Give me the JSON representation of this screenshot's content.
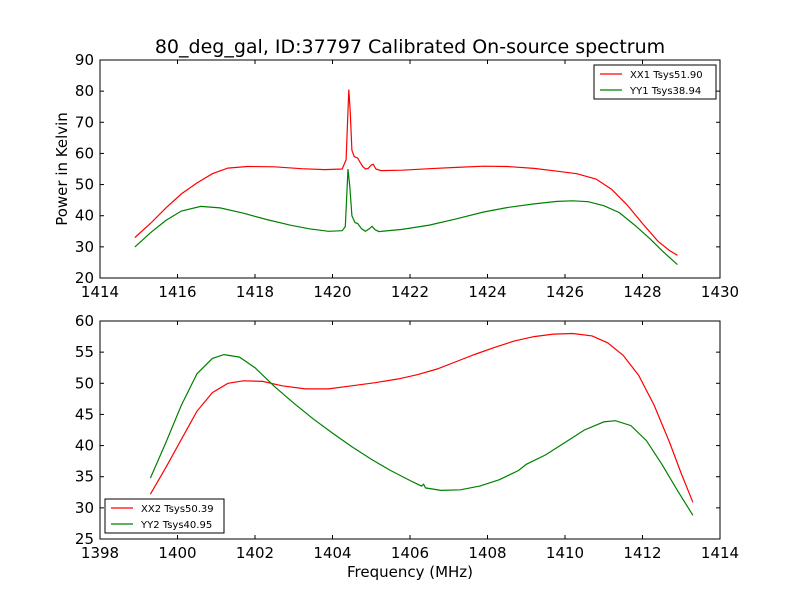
{
  "title": "80_deg_gal, ID:37797 Calibrated On-source spectrum",
  "chart_data": [
    {
      "type": "line",
      "xlabel": "",
      "ylabel": "Power in Kelvin",
      "xlim": [
        1414,
        1430
      ],
      "ylim": [
        20,
        90
      ],
      "xticks": [
        1414,
        1416,
        1418,
        1420,
        1422,
        1424,
        1426,
        1428,
        1430
      ],
      "yticks": [
        20,
        30,
        40,
        50,
        60,
        70,
        80,
        90
      ],
      "legend_loc": "top-right",
      "series": [
        {
          "name": "XX1 Tsys51.90",
          "color": "#ff0000",
          "points": [
            [
              1414.9,
              33
            ],
            [
              1415.3,
              37.5
            ],
            [
              1415.7,
              42.5
            ],
            [
              1416.1,
              47
            ],
            [
              1416.5,
              50.5
            ],
            [
              1416.9,
              53.5
            ],
            [
              1417.3,
              55.3
            ],
            [
              1417.8,
              55.8
            ],
            [
              1418.5,
              55.7
            ],
            [
              1419.2,
              55.1
            ],
            [
              1419.8,
              54.8
            ],
            [
              1420.25,
              55.0
            ],
            [
              1420.35,
              58
            ],
            [
              1420.42,
              80.5
            ],
            [
              1420.46,
              73
            ],
            [
              1420.5,
              61
            ],
            [
              1420.56,
              59
            ],
            [
              1420.65,
              58.5
            ],
            [
              1420.72,
              57
            ],
            [
              1420.78,
              55.8
            ],
            [
              1420.85,
              55
            ],
            [
              1420.92,
              55.2
            ],
            [
              1421.0,
              56.3
            ],
            [
              1421.05,
              56.5
            ],
            [
              1421.12,
              55
            ],
            [
              1421.25,
              54.5
            ],
            [
              1421.8,
              54.6
            ],
            [
              1422.5,
              55.1
            ],
            [
              1423.2,
              55.5
            ],
            [
              1423.9,
              55.9
            ],
            [
              1424.5,
              55.8
            ],
            [
              1425.2,
              55.2
            ],
            [
              1425.8,
              54.3
            ],
            [
              1426.3,
              53.5
            ],
            [
              1426.8,
              51.8
            ],
            [
              1427.2,
              48.5
            ],
            [
              1427.6,
              43.5
            ],
            [
              1428.0,
              37.5
            ],
            [
              1428.4,
              31.8
            ],
            [
              1428.7,
              28.8
            ],
            [
              1428.9,
              27.3
            ]
          ]
        },
        {
          "name": "YY1 Tsys38.94",
          "color": "#008000",
          "points": [
            [
              1414.9,
              30
            ],
            [
              1415.3,
              34.5
            ],
            [
              1415.7,
              38.5
            ],
            [
              1416.1,
              41.5
            ],
            [
              1416.6,
              43
            ],
            [
              1417.1,
              42.5
            ],
            [
              1417.7,
              40.8
            ],
            [
              1418.3,
              38.8
            ],
            [
              1418.9,
              37.0
            ],
            [
              1419.4,
              35.8
            ],
            [
              1419.9,
              35.0
            ],
            [
              1420.25,
              35.2
            ],
            [
              1420.33,
              36.5
            ],
            [
              1420.4,
              55
            ],
            [
              1420.45,
              49
            ],
            [
              1420.5,
              40
            ],
            [
              1420.58,
              37.8
            ],
            [
              1420.65,
              37.5
            ],
            [
              1420.75,
              35.8
            ],
            [
              1420.85,
              35.0
            ],
            [
              1420.95,
              35.8
            ],
            [
              1421.02,
              36.6
            ],
            [
              1421.1,
              35.5
            ],
            [
              1421.2,
              34.9
            ],
            [
              1421.8,
              35.6
            ],
            [
              1422.5,
              37.0
            ],
            [
              1423.2,
              39.0
            ],
            [
              1423.9,
              41.2
            ],
            [
              1424.5,
              42.6
            ],
            [
              1425.2,
              43.8
            ],
            [
              1425.8,
              44.6
            ],
            [
              1426.2,
              44.8
            ],
            [
              1426.6,
              44.5
            ],
            [
              1427.0,
              43.2
            ],
            [
              1427.4,
              41.0
            ],
            [
              1427.8,
              37.0
            ],
            [
              1428.2,
              32.5
            ],
            [
              1428.5,
              28.8
            ],
            [
              1428.9,
              24.3
            ]
          ]
        }
      ]
    },
    {
      "type": "line",
      "xlabel": "Frequency (MHz)",
      "ylabel": "",
      "xlim": [
        1398,
        1414
      ],
      "ylim": [
        25,
        60
      ],
      "xticks": [
        1398,
        1400,
        1402,
        1404,
        1406,
        1408,
        1410,
        1412,
        1414
      ],
      "yticks": [
        25,
        30,
        35,
        40,
        45,
        50,
        55,
        60
      ],
      "legend_loc": "bottom-left",
      "series": [
        {
          "name": "XX2 Tsys50.39",
          "color": "#ff0000",
          "points": [
            [
              1399.3,
              32.2
            ],
            [
              1399.7,
              36.5
            ],
            [
              1400.1,
              41
            ],
            [
              1400.5,
              45.5
            ],
            [
              1400.9,
              48.5
            ],
            [
              1401.3,
              50
            ],
            [
              1401.7,
              50.4
            ],
            [
              1402.2,
              50.3
            ],
            [
              1402.7,
              49.6
            ],
            [
              1403.3,
              49.1
            ],
            [
              1403.9,
              49.1
            ],
            [
              1404.5,
              49.6
            ],
            [
              1405.1,
              50.1
            ],
            [
              1405.7,
              50.7
            ],
            [
              1406.2,
              51.4
            ],
            [
              1406.7,
              52.3
            ],
            [
              1407.2,
              53.5
            ],
            [
              1407.7,
              54.7
            ],
            [
              1408.2,
              55.8
            ],
            [
              1408.7,
              56.8
            ],
            [
              1409.2,
              57.5
            ],
            [
              1409.7,
              57.9
            ],
            [
              1410.2,
              58.0
            ],
            [
              1410.7,
              57.6
            ],
            [
              1411.1,
              56.5
            ],
            [
              1411.5,
              54.5
            ],
            [
              1411.9,
              51.3
            ],
            [
              1412.3,
              46.5
            ],
            [
              1412.7,
              40.5
            ],
            [
              1413.0,
              35.5
            ],
            [
              1413.3,
              30.9
            ]
          ]
        },
        {
          "name": "YY2 Tsys40.95",
          "color": "#008000",
          "points": [
            [
              1399.3,
              34.8
            ],
            [
              1399.7,
              40.5
            ],
            [
              1400.1,
              46.5
            ],
            [
              1400.5,
              51.5
            ],
            [
              1400.9,
              54
            ],
            [
              1401.2,
              54.6
            ],
            [
              1401.6,
              54.2
            ],
            [
              1402.0,
              52.5
            ],
            [
              1402.5,
              49.5
            ],
            [
              1403.0,
              46.8
            ],
            [
              1403.5,
              44.3
            ],
            [
              1404.0,
              42.0
            ],
            [
              1404.5,
              39.8
            ],
            [
              1405.0,
              37.8
            ],
            [
              1405.5,
              36.0
            ],
            [
              1406.0,
              34.4
            ],
            [
              1406.3,
              33.5
            ],
            [
              1406.35,
              33.8
            ],
            [
              1406.4,
              33.2
            ],
            [
              1406.8,
              32.8
            ],
            [
              1407.3,
              32.9
            ],
            [
              1407.8,
              33.5
            ],
            [
              1408.3,
              34.5
            ],
            [
              1408.8,
              36.0
            ],
            [
              1409.0,
              37.0
            ],
            [
              1409.5,
              38.5
            ],
            [
              1410.0,
              40.5
            ],
            [
              1410.5,
              42.5
            ],
            [
              1411.0,
              43.8
            ],
            [
              1411.3,
              44.0
            ],
            [
              1411.7,
              43.2
            ],
            [
              1412.1,
              40.8
            ],
            [
              1412.5,
              37.0
            ],
            [
              1412.9,
              32.8
            ],
            [
              1413.3,
              28.8
            ]
          ]
        }
      ]
    }
  ]
}
